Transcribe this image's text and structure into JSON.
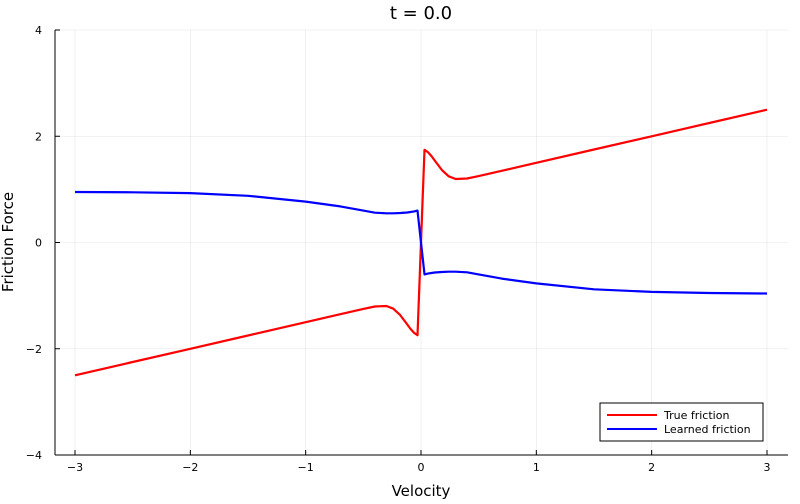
{
  "chart_data": {
    "type": "line",
    "title": "t = 0.0",
    "xlabel": "Velocity",
    "ylabel": "Friction Force",
    "xlim": [
      -3.15,
      3.2
    ],
    "ylim": [
      -4,
      4
    ],
    "xticks": [
      -3,
      -2,
      -1,
      0,
      1,
      2,
      3
    ],
    "xtick_labels": [
      "−3",
      "−2",
      "−1",
      "0",
      "1",
      "2",
      "3"
    ],
    "yticks": [
      -4,
      -2,
      0,
      2,
      4
    ],
    "ytick_labels": [
      "−4",
      "−2",
      "0",
      "2",
      "4"
    ],
    "grid": true,
    "legend_position": "bottom-right",
    "x": [
      -3,
      -2.5,
      -2,
      -1.5,
      -1,
      -0.7,
      -0.5,
      -0.4,
      -0.3,
      -0.24,
      -0.18,
      -0.12,
      -0.09,
      -0.06,
      -0.03,
      0.03,
      0.06,
      0.09,
      0.12,
      0.18,
      0.24,
      0.3,
      0.4,
      0.5,
      0.7,
      1,
      1.5,
      2,
      2.5,
      3
    ],
    "series": [
      {
        "name": "True friction",
        "color": "#ff0000",
        "values": [
          -2.5,
          -2.25,
          -2,
          -1.75,
          -1.5,
          -1.35,
          -1.25,
          -1.205,
          -1.196,
          -1.247,
          -1.366,
          -1.541,
          -1.629,
          -1.701,
          -1.745,
          1.745,
          1.701,
          1.629,
          1.541,
          1.366,
          1.247,
          1.196,
          1.205,
          1.25,
          1.35,
          1.5,
          1.75,
          2,
          2.25,
          2.5
        ]
      },
      {
        "name": "Learned friction",
        "color": "#0000ff",
        "values": [
          0.95,
          0.945,
          0.93,
          0.88,
          0.77,
          0.68,
          0.6,
          0.56,
          0.55,
          0.55,
          0.555,
          0.565,
          0.575,
          0.585,
          0.6,
          -0.6,
          -0.585,
          -0.575,
          -0.565,
          -0.555,
          -0.55,
          -0.55,
          -0.56,
          -0.6,
          -0.68,
          -0.77,
          -0.88,
          -0.93,
          -0.95,
          -0.96
        ]
      }
    ]
  }
}
